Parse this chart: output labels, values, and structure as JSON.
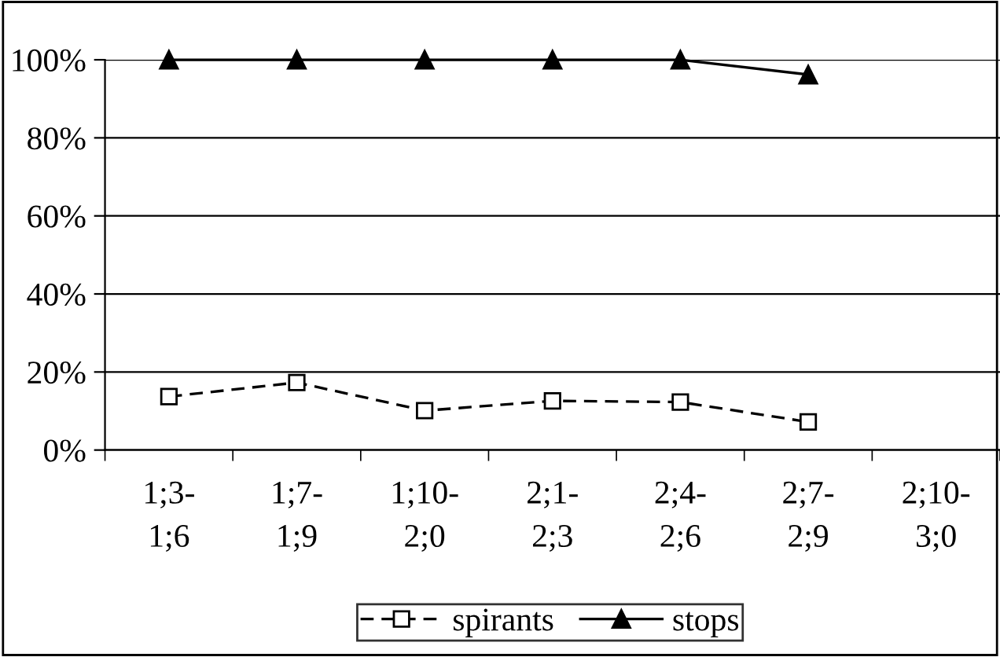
{
  "chart_data": {
    "type": "line",
    "categories": [
      "1;3-\n1;6",
      "1;7-\n1;9",
      "1;10-\n2;0",
      "2;1-\n2;3",
      "2;4-\n2;6",
      "2;7-\n2;9",
      "2;10-\n3;0"
    ],
    "series": [
      {
        "name": "spirants",
        "color": "#000000",
        "marker": "square",
        "line_style": "dashed",
        "values": [
          13.7,
          17.3,
          10.1,
          12.6,
          12.3,
          7.2,
          null
        ]
      },
      {
        "name": "stops",
        "color": "#000000",
        "marker": "triangle",
        "line_style": "solid",
        "values": [
          100,
          100,
          100,
          100,
          100,
          96.2,
          null
        ]
      }
    ],
    "ylim": [
      0,
      100
    ],
    "yticks": [
      {
        "value": 0,
        "label": "0%"
      },
      {
        "value": 20,
        "label": "20%"
      },
      {
        "value": 40,
        "label": "40%"
      },
      {
        "value": 60,
        "label": "60%"
      },
      {
        "value": 80,
        "label": "80%"
      },
      {
        "value": 100,
        "label": "100%"
      }
    ],
    "grid": "y",
    "legend": "bottom"
  }
}
